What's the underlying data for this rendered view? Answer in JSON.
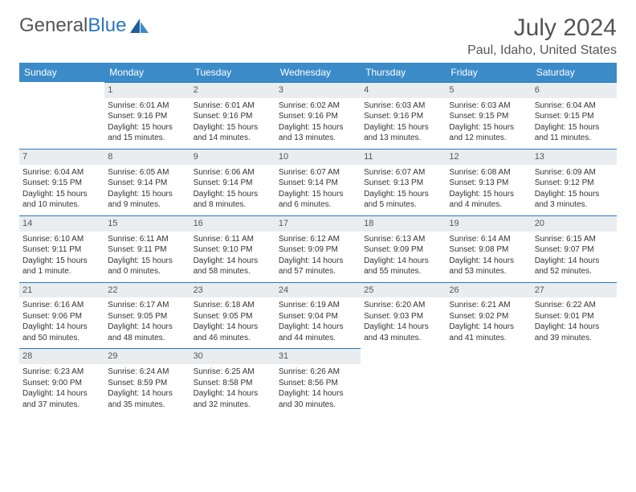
{
  "brand": {
    "part1": "General",
    "part2": "Blue"
  },
  "title": "July 2024",
  "location": "Paul, Idaho, United States",
  "colors": {
    "header_bg": "#3b8bc9",
    "daynum_bg": "#e9edef",
    "daynum_border": "#2a77c0",
    "text": "#333333"
  },
  "weekdays": [
    "Sunday",
    "Monday",
    "Tuesday",
    "Wednesday",
    "Thursday",
    "Friday",
    "Saturday"
  ],
  "weeks": [
    [
      null,
      {
        "n": "1",
        "sr": "Sunrise: 6:01 AM",
        "ss": "Sunset: 9:16 PM",
        "d1": "Daylight: 15 hours",
        "d2": "and 15 minutes."
      },
      {
        "n": "2",
        "sr": "Sunrise: 6:01 AM",
        "ss": "Sunset: 9:16 PM",
        "d1": "Daylight: 15 hours",
        "d2": "and 14 minutes."
      },
      {
        "n": "3",
        "sr": "Sunrise: 6:02 AM",
        "ss": "Sunset: 9:16 PM",
        "d1": "Daylight: 15 hours",
        "d2": "and 13 minutes."
      },
      {
        "n": "4",
        "sr": "Sunrise: 6:03 AM",
        "ss": "Sunset: 9:16 PM",
        "d1": "Daylight: 15 hours",
        "d2": "and 13 minutes."
      },
      {
        "n": "5",
        "sr": "Sunrise: 6:03 AM",
        "ss": "Sunset: 9:15 PM",
        "d1": "Daylight: 15 hours",
        "d2": "and 12 minutes."
      },
      {
        "n": "6",
        "sr": "Sunrise: 6:04 AM",
        "ss": "Sunset: 9:15 PM",
        "d1": "Daylight: 15 hours",
        "d2": "and 11 minutes."
      }
    ],
    [
      {
        "n": "7",
        "sr": "Sunrise: 6:04 AM",
        "ss": "Sunset: 9:15 PM",
        "d1": "Daylight: 15 hours",
        "d2": "and 10 minutes."
      },
      {
        "n": "8",
        "sr": "Sunrise: 6:05 AM",
        "ss": "Sunset: 9:14 PM",
        "d1": "Daylight: 15 hours",
        "d2": "and 9 minutes."
      },
      {
        "n": "9",
        "sr": "Sunrise: 6:06 AM",
        "ss": "Sunset: 9:14 PM",
        "d1": "Daylight: 15 hours",
        "d2": "and 8 minutes."
      },
      {
        "n": "10",
        "sr": "Sunrise: 6:07 AM",
        "ss": "Sunset: 9:14 PM",
        "d1": "Daylight: 15 hours",
        "d2": "and 6 minutes."
      },
      {
        "n": "11",
        "sr": "Sunrise: 6:07 AM",
        "ss": "Sunset: 9:13 PM",
        "d1": "Daylight: 15 hours",
        "d2": "and 5 minutes."
      },
      {
        "n": "12",
        "sr": "Sunrise: 6:08 AM",
        "ss": "Sunset: 9:13 PM",
        "d1": "Daylight: 15 hours",
        "d2": "and 4 minutes."
      },
      {
        "n": "13",
        "sr": "Sunrise: 6:09 AM",
        "ss": "Sunset: 9:12 PM",
        "d1": "Daylight: 15 hours",
        "d2": "and 3 minutes."
      }
    ],
    [
      {
        "n": "14",
        "sr": "Sunrise: 6:10 AM",
        "ss": "Sunset: 9:11 PM",
        "d1": "Daylight: 15 hours",
        "d2": "and 1 minute."
      },
      {
        "n": "15",
        "sr": "Sunrise: 6:11 AM",
        "ss": "Sunset: 9:11 PM",
        "d1": "Daylight: 15 hours",
        "d2": "and 0 minutes."
      },
      {
        "n": "16",
        "sr": "Sunrise: 6:11 AM",
        "ss": "Sunset: 9:10 PM",
        "d1": "Daylight: 14 hours",
        "d2": "and 58 minutes."
      },
      {
        "n": "17",
        "sr": "Sunrise: 6:12 AM",
        "ss": "Sunset: 9:09 PM",
        "d1": "Daylight: 14 hours",
        "d2": "and 57 minutes."
      },
      {
        "n": "18",
        "sr": "Sunrise: 6:13 AM",
        "ss": "Sunset: 9:09 PM",
        "d1": "Daylight: 14 hours",
        "d2": "and 55 minutes."
      },
      {
        "n": "19",
        "sr": "Sunrise: 6:14 AM",
        "ss": "Sunset: 9:08 PM",
        "d1": "Daylight: 14 hours",
        "d2": "and 53 minutes."
      },
      {
        "n": "20",
        "sr": "Sunrise: 6:15 AM",
        "ss": "Sunset: 9:07 PM",
        "d1": "Daylight: 14 hours",
        "d2": "and 52 minutes."
      }
    ],
    [
      {
        "n": "21",
        "sr": "Sunrise: 6:16 AM",
        "ss": "Sunset: 9:06 PM",
        "d1": "Daylight: 14 hours",
        "d2": "and 50 minutes."
      },
      {
        "n": "22",
        "sr": "Sunrise: 6:17 AM",
        "ss": "Sunset: 9:05 PM",
        "d1": "Daylight: 14 hours",
        "d2": "and 48 minutes."
      },
      {
        "n": "23",
        "sr": "Sunrise: 6:18 AM",
        "ss": "Sunset: 9:05 PM",
        "d1": "Daylight: 14 hours",
        "d2": "and 46 minutes."
      },
      {
        "n": "24",
        "sr": "Sunrise: 6:19 AM",
        "ss": "Sunset: 9:04 PM",
        "d1": "Daylight: 14 hours",
        "d2": "and 44 minutes."
      },
      {
        "n": "25",
        "sr": "Sunrise: 6:20 AM",
        "ss": "Sunset: 9:03 PM",
        "d1": "Daylight: 14 hours",
        "d2": "and 43 minutes."
      },
      {
        "n": "26",
        "sr": "Sunrise: 6:21 AM",
        "ss": "Sunset: 9:02 PM",
        "d1": "Daylight: 14 hours",
        "d2": "and 41 minutes."
      },
      {
        "n": "27",
        "sr": "Sunrise: 6:22 AM",
        "ss": "Sunset: 9:01 PM",
        "d1": "Daylight: 14 hours",
        "d2": "and 39 minutes."
      }
    ],
    [
      {
        "n": "28",
        "sr": "Sunrise: 6:23 AM",
        "ss": "Sunset: 9:00 PM",
        "d1": "Daylight: 14 hours",
        "d2": "and 37 minutes."
      },
      {
        "n": "29",
        "sr": "Sunrise: 6:24 AM",
        "ss": "Sunset: 8:59 PM",
        "d1": "Daylight: 14 hours",
        "d2": "and 35 minutes."
      },
      {
        "n": "30",
        "sr": "Sunrise: 6:25 AM",
        "ss": "Sunset: 8:58 PM",
        "d1": "Daylight: 14 hours",
        "d2": "and 32 minutes."
      },
      {
        "n": "31",
        "sr": "Sunrise: 6:26 AM",
        "ss": "Sunset: 8:56 PM",
        "d1": "Daylight: 14 hours",
        "d2": "and 30 minutes."
      },
      null,
      null,
      null
    ]
  ]
}
